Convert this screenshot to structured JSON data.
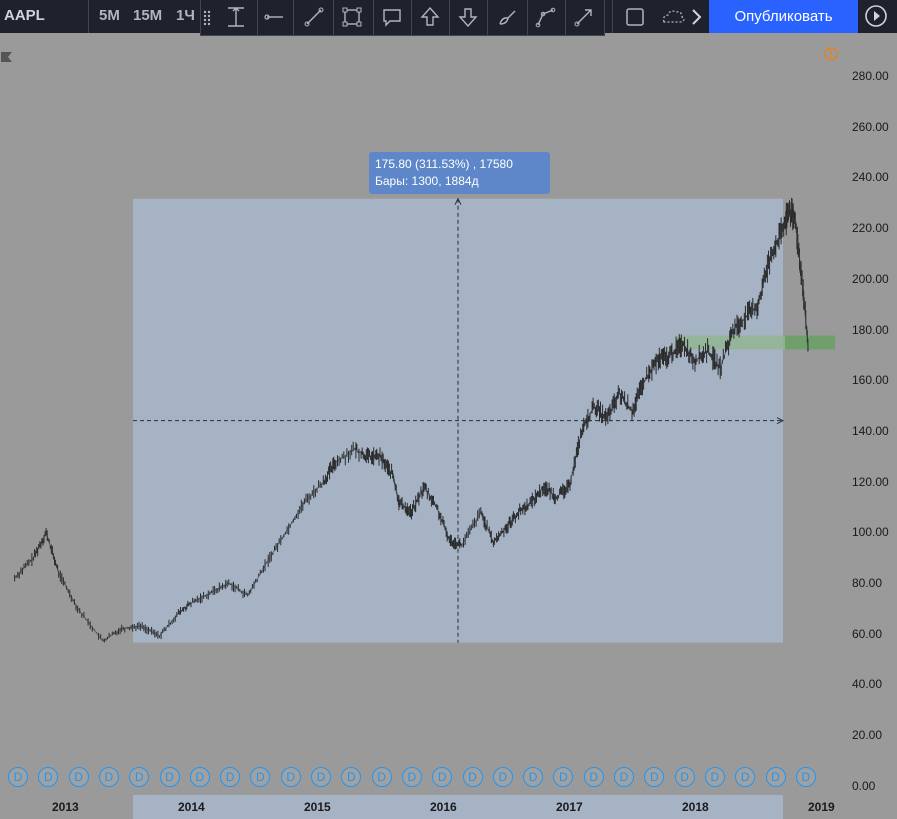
{
  "toolbar": {
    "symbol": "AAPL",
    "timeframes": [
      "5М",
      "15М",
      "1Ч"
    ],
    "publish_label": "Опубликовать",
    "drawing_tools": [
      "date-range-icon",
      "horizontal-ray-icon",
      "trend-line-icon",
      "rectangle-select-icon",
      "callout-icon",
      "arrow-up-icon",
      "arrow-down-icon",
      "brush-icon",
      "path-icon",
      "arrow-line-icon"
    ],
    "right_tools": [
      "rectangle-icon",
      "cloud-icon",
      "chevron-right-icon"
    ]
  },
  "measure_tooltip": {
    "line1": "175.80 (311.53%) , 17580",
    "line2": "Бары: 1300, 1884д"
  },
  "price_axis": [
    "280.00",
    "260.00",
    "240.00",
    "220.00",
    "200.00",
    "180.00",
    "160.00",
    "140.00",
    "120.00",
    "100.00",
    "80.00",
    "60.00",
    "40.00",
    "20.00",
    "0.00"
  ],
  "time_axis": [
    "2013",
    "2014",
    "2015",
    "2016",
    "2017",
    "2018",
    "2019"
  ],
  "dividend_markers": [
    "D",
    "D",
    "D",
    "D",
    "D",
    "D",
    "D",
    "D",
    "D",
    "D",
    "D",
    "D",
    "D",
    "D",
    "D",
    "D",
    "D",
    "D",
    "D",
    "D",
    "D",
    "D",
    "D",
    "D",
    "D",
    "D",
    "D"
  ],
  "colors": {
    "background": "#9a9a9a",
    "measure_fill": "#a5b3c5",
    "accent": "#2962ff",
    "zone": "#6fa06b",
    "marker": "#2196f3"
  },
  "chart_data": {
    "type": "line",
    "xlabel": "",
    "ylabel": "",
    "ylim": [
      0,
      290
    ],
    "xlim": [
      2012.6,
      2019.2
    ],
    "x": [
      2012.6,
      2012.75,
      2012.85,
      2012.95,
      2013.1,
      2013.3,
      2013.45,
      2013.6,
      2013.75,
      2013.9,
      2014.0,
      2014.15,
      2014.3,
      2014.45,
      2014.6,
      2014.75,
      2014.9,
      2015.05,
      2015.15,
      2015.3,
      2015.4,
      2015.5,
      2015.6,
      2015.65,
      2015.75,
      2015.85,
      2015.95,
      2016.05,
      2016.15,
      2016.3,
      2016.4,
      2016.5,
      2016.6,
      2016.7,
      2016.8,
      2016.9,
      2017.0,
      2017.1,
      2017.2,
      2017.3,
      2017.4,
      2017.5,
      2017.6,
      2017.7,
      2017.8,
      2017.9,
      2018.0,
      2018.1,
      2018.2,
      2018.3,
      2018.4,
      2018.5,
      2018.6,
      2018.7,
      2018.75,
      2018.8,
      2018.85,
      2018.9
    ],
    "values": [
      82,
      90,
      100,
      84,
      70,
      57,
      62,
      63,
      59,
      68,
      72,
      76,
      80,
      75,
      88,
      100,
      112,
      120,
      128,
      133,
      130,
      130,
      123,
      112,
      108,
      118,
      110,
      97,
      95,
      108,
      96,
      102,
      108,
      112,
      118,
      114,
      118,
      140,
      150,
      145,
      155,
      148,
      160,
      168,
      170,
      175,
      168,
      172,
      165,
      180,
      185,
      190,
      210,
      220,
      228,
      222,
      200,
      172
    ],
    "measure": {
      "from_price": 56.4,
      "to_price": 232.2,
      "change": 175.8,
      "percent": 311.53,
      "bars": 1300,
      "days": 1884
    },
    "zone": {
      "from": 172.5,
      "to": 178.0
    }
  }
}
